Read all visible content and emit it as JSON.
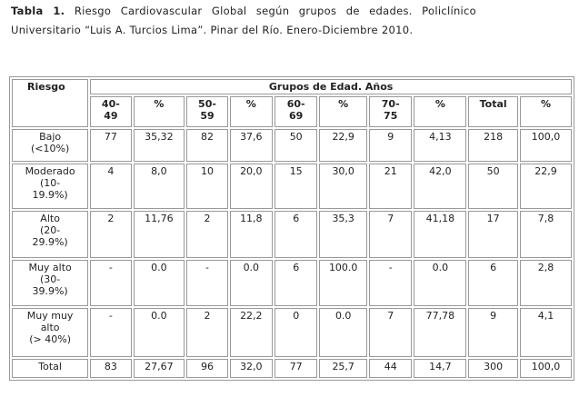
{
  "caption": {
    "label": "Tabla 1.",
    "text": "Riesgo Cardiovascular Global según grupos de edades. Policlínico Universitario “Luis A. Turcios Lima”. Pinar del Río. Enero-Diciembre 2010."
  },
  "table": {
    "corner": "Riesgo",
    "group_header": "Grupos de Edad. Años",
    "columns": [
      "40-\n49",
      "%",
      "50-\n59",
      "%",
      "60-\n69",
      "%",
      "70-\n75",
      "%",
      "Total",
      "%"
    ],
    "rows": [
      {
        "label": "Bajo\n(<10%)",
        "cells": [
          "77",
          "35,32",
          "82",
          "37,6",
          "50",
          "22,9",
          "9",
          "4,13",
          "218",
          "100,0"
        ]
      },
      {
        "label": "Moderado\n(10-\n19.9%)",
        "cells": [
          "4",
          "8,0",
          "10",
          "20,0",
          "15",
          "30,0",
          "21",
          "42,0",
          "50",
          "22,9"
        ]
      },
      {
        "label": "Alto\n(20-\n29.9%)",
        "cells": [
          "2",
          "11,76",
          "2",
          "11,8",
          "6",
          "35,3",
          "7",
          "41,18",
          "17",
          "7,8"
        ]
      },
      {
        "label": "Muy alto\n(30-\n39.9%)",
        "cells": [
          "-",
          "0.0",
          "-",
          "0.0",
          "6",
          "100.0",
          "-",
          "0.0",
          "6",
          "2,8"
        ]
      },
      {
        "label": "Muy muy\nalto\n(> 40%)",
        "cells": [
          "-",
          "0.0",
          "2",
          "22,2",
          "0",
          "0.0",
          "7",
          "77,78",
          "9",
          "4,1"
        ]
      },
      {
        "label": "Total",
        "cells": [
          "83",
          "27,67",
          "96",
          "32,0",
          "77",
          "25,7",
          "44",
          "14,7",
          "300",
          "100,0"
        ]
      }
    ]
  }
}
